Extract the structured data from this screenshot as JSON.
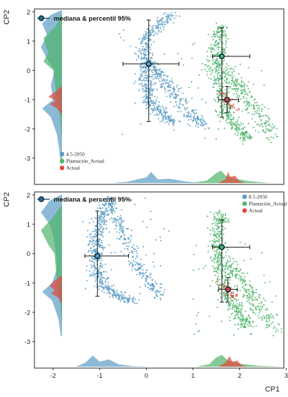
{
  "colors": {
    "blue": "#5b9cc4",
    "green": "#4eb46a",
    "red": "#e0463c",
    "median_dot": "#1f6f8b",
    "frame": "#222222"
  },
  "median_legend_label": "mediana & percentil 95%",
  "chart_data": [
    {
      "type": "scatter",
      "ylabel": "CP2",
      "xlabel": "",
      "xlim": [
        -2.4,
        2.95
      ],
      "ylim": [
        -3.9,
        2.1
      ],
      "yticks": [
        -3,
        -2,
        -1,
        0,
        1,
        2
      ],
      "xticks": [],
      "legend_position": "lower-left",
      "series": [
        {
          "name": "4.5-2050",
          "color": "#5b9cc4",
          "median": [
            0.05,
            0.22
          ],
          "x95": [
            -0.5,
            0.7
          ],
          "y95": [
            -1.75,
            1.72
          ]
        },
        {
          "name": "Plantación_Actual",
          "color": "#4eb46a",
          "median": [
            1.62,
            0.48
          ],
          "x95": [
            1.42,
            2.22
          ],
          "y95": [
            -1.6,
            1.45
          ]
        },
        {
          "name": "Actual",
          "color": "#e0463c",
          "median": [
            1.73,
            -1.0
          ],
          "x95": [
            1.55,
            1.98
          ],
          "y95": [
            -1.45,
            -0.55
          ]
        }
      ]
    },
    {
      "type": "scatter",
      "ylabel": "CP2",
      "xlabel": "CP1",
      "xlim": [
        -2.4,
        2.95
      ],
      "ylim": [
        -3.9,
        2.1
      ],
      "yticks": [
        -3,
        -2,
        -1,
        0,
        1,
        2
      ],
      "xticks": [
        -2,
        -1,
        0,
        1,
        2,
        3
      ],
      "legend_position": "top-right",
      "series": [
        {
          "name": "8.5-2050",
          "color": "#5b9cc4",
          "median": [
            -1.05,
            -0.08
          ],
          "x95": [
            -1.32,
            -0.38
          ],
          "y95": [
            -1.45,
            1.45
          ]
        },
        {
          "name": "Plantación_Actual",
          "color": "#4eb46a",
          "median": [
            1.62,
            0.22
          ],
          "x95": [
            1.42,
            2.22
          ],
          "y95": [
            -1.65,
            1.15
          ]
        },
        {
          "name": "Actual",
          "color": "#e0463c",
          "median": [
            1.75,
            -1.22
          ],
          "x95": [
            1.55,
            1.95
          ],
          "y95": [
            -1.65,
            -0.82
          ]
        }
      ]
    }
  ]
}
